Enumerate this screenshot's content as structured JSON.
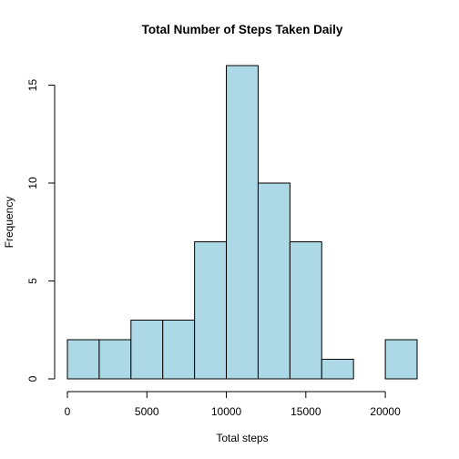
{
  "chart_data": {
    "type": "bar",
    "subtype": "histogram",
    "title": "Total Number of Steps Taken Daily",
    "xlabel": "Total steps",
    "ylabel": "Frequency",
    "bar_color": "#ADD8E6",
    "bar_edge_color": "#000000",
    "bins": [
      {
        "start": 0,
        "end": 2000,
        "count": 2
      },
      {
        "start": 2000,
        "end": 4000,
        "count": 2
      },
      {
        "start": 4000,
        "end": 6000,
        "count": 3
      },
      {
        "start": 6000,
        "end": 8000,
        "count": 3
      },
      {
        "start": 8000,
        "end": 10000,
        "count": 7
      },
      {
        "start": 10000,
        "end": 12000,
        "count": 16
      },
      {
        "start": 12000,
        "end": 14000,
        "count": 10
      },
      {
        "start": 14000,
        "end": 16000,
        "count": 7
      },
      {
        "start": 16000,
        "end": 18000,
        "count": 1
      },
      {
        "start": 18000,
        "end": 20000,
        "count": 0
      },
      {
        "start": 20000,
        "end": 22000,
        "count": 2
      }
    ],
    "xlim": [
      0,
      22000
    ],
    "ylim": [
      0,
      16
    ],
    "x_ticks": [
      0,
      5000,
      10000,
      15000,
      20000
    ],
    "x_tick_labels": [
      "0",
      "5000",
      "10000",
      "15000",
      "20000"
    ],
    "y_ticks": [
      0,
      5,
      10,
      15
    ],
    "y_tick_labels": [
      "0",
      "5",
      "10",
      "15"
    ],
    "grid": false,
    "legend": "none"
  }
}
